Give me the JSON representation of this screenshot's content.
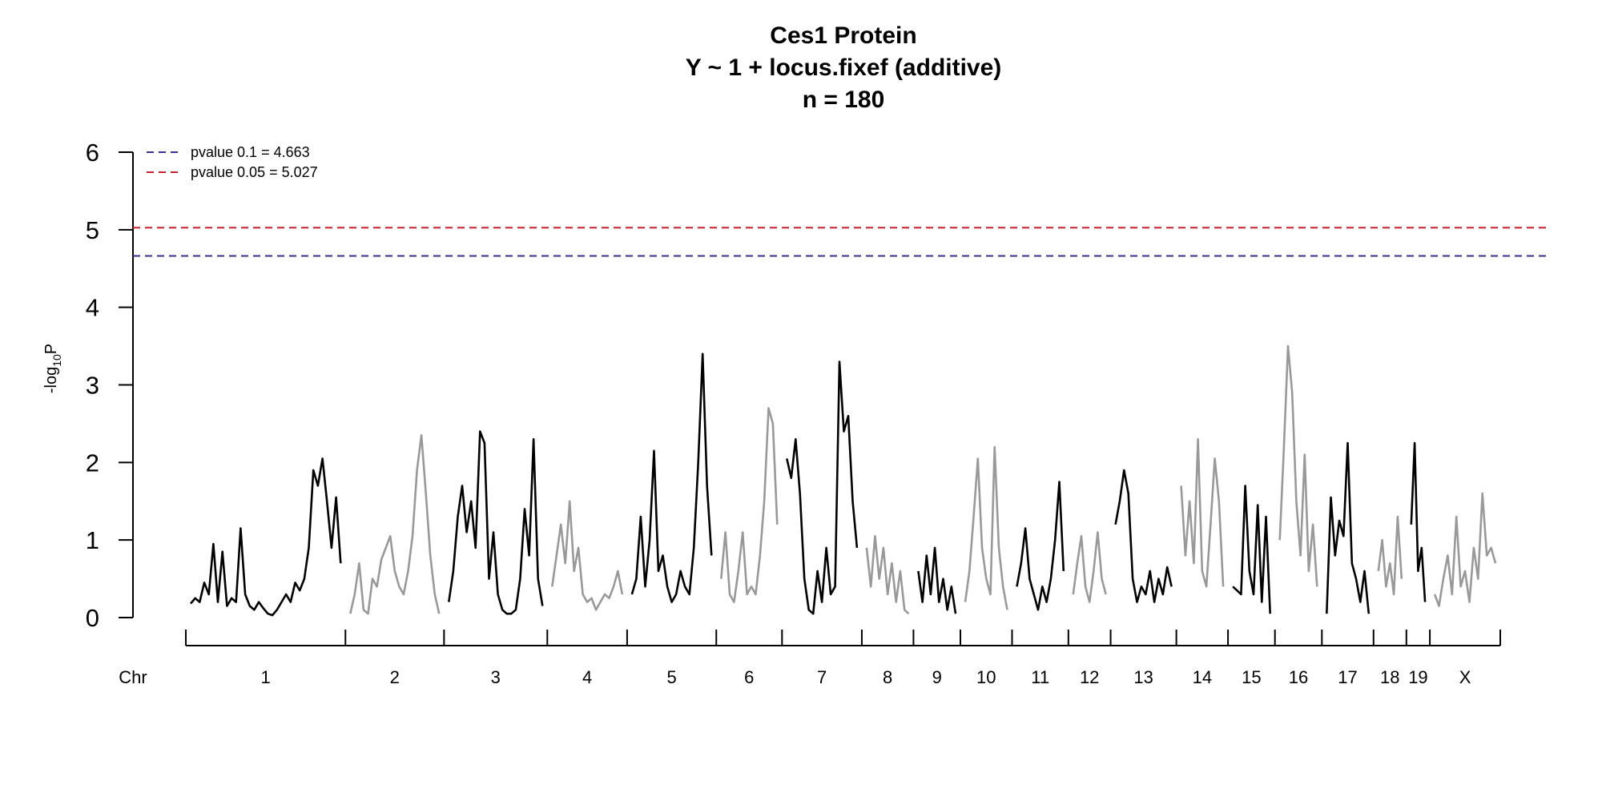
{
  "chart_data": {
    "type": "line",
    "title": [
      "Ces1 Protein",
      "Y ~ 1 + locus.fixef (additive)",
      "n = 180"
    ],
    "ylabel": "-log10P",
    "ylabel_parts": {
      "main": "-log",
      "sub": "10",
      "tail": "P"
    },
    "ylim": [
      0,
      6
    ],
    "yticks": [
      0,
      1,
      2,
      3,
      4,
      5,
      6
    ],
    "xaxis_label": "Chr",
    "grid": false,
    "legend_position": "top-left",
    "thresholds": [
      {
        "label": "pvalue 0.1 = 4.663",
        "value": 4.663,
        "color": "#3b2f8f"
      },
      {
        "label": "pvalue 0.05 = 5.027",
        "value": 5.027,
        "color": "#cc1f2f"
      }
    ],
    "series_colors": {
      "odd": "#000000",
      "even": "#999999"
    },
    "chromosomes": [
      {
        "label": "1",
        "values": [
          0.18,
          0.25,
          0.2,
          0.45,
          0.3,
          0.95,
          0.2,
          0.85,
          0.15,
          0.25,
          0.2,
          1.15,
          0.3,
          0.15,
          0.1,
          0.2,
          0.12,
          0.05,
          0.03,
          0.1,
          0.2,
          0.3,
          0.2,
          0.45,
          0.35,
          0.5,
          0.9,
          1.9,
          1.7,
          2.05,
          1.5,
          0.9,
          1.55,
          0.7
        ]
      },
      {
        "label": "2",
        "values": [
          0.05,
          0.3,
          0.7,
          0.1,
          0.05,
          0.5,
          0.4,
          0.75,
          0.9,
          1.05,
          0.6,
          0.4,
          0.3,
          0.6,
          1.05,
          1.9,
          2.35,
          1.6,
          0.8,
          0.3,
          0.05
        ]
      },
      {
        "label": "3",
        "values": [
          0.2,
          0.6,
          1.3,
          1.7,
          1.1,
          1.5,
          0.9,
          2.4,
          2.25,
          0.5,
          1.1,
          0.3,
          0.1,
          0.05,
          0.05,
          0.1,
          0.5,
          1.4,
          0.8,
          2.3,
          0.5,
          0.15
        ]
      },
      {
        "label": "4",
        "values": [
          0.4,
          0.8,
          1.2,
          0.7,
          1.5,
          0.6,
          0.9,
          0.3,
          0.2,
          0.25,
          0.1,
          0.2,
          0.3,
          0.25,
          0.4,
          0.6,
          0.3
        ]
      },
      {
        "label": "5",
        "values": [
          0.3,
          0.5,
          1.3,
          0.4,
          1.0,
          2.15,
          0.6,
          0.8,
          0.4,
          0.2,
          0.3,
          0.6,
          0.4,
          0.3,
          0.9,
          2.0,
          3.4,
          1.7,
          0.8
        ]
      },
      {
        "label": "6",
        "values": [
          0.5,
          1.1,
          0.3,
          0.2,
          0.6,
          1.1,
          0.3,
          0.4,
          0.3,
          0.8,
          1.5,
          2.7,
          2.5,
          1.2
        ]
      },
      {
        "label": "7",
        "values": [
          2.05,
          1.8,
          2.3,
          1.6,
          0.5,
          0.1,
          0.05,
          0.6,
          0.2,
          0.9,
          0.3,
          0.4,
          3.3,
          2.4,
          2.6,
          1.5,
          0.9
        ]
      },
      {
        "label": "8",
        "values": [
          0.9,
          0.4,
          1.05,
          0.5,
          0.9,
          0.3,
          0.7,
          0.2,
          0.6,
          0.1,
          0.05
        ]
      },
      {
        "label": "9",
        "values": [
          0.6,
          0.2,
          0.8,
          0.3,
          0.9,
          0.2,
          0.5,
          0.1,
          0.4,
          0.05
        ]
      },
      {
        "label": "10",
        "values": [
          0.2,
          0.6,
          1.3,
          2.05,
          0.9,
          0.5,
          0.3,
          2.2,
          0.9,
          0.4,
          0.1
        ]
      },
      {
        "label": "11",
        "values": [
          0.4,
          0.7,
          1.15,
          0.5,
          0.3,
          0.1,
          0.4,
          0.2,
          0.5,
          1.0,
          1.75,
          0.6
        ]
      },
      {
        "label": "12",
        "values": [
          0.3,
          0.7,
          1.05,
          0.4,
          0.2,
          0.6,
          1.1,
          0.5,
          0.3
        ]
      },
      {
        "label": "13",
        "values": [
          1.2,
          1.5,
          1.9,
          1.6,
          0.5,
          0.2,
          0.4,
          0.3,
          0.6,
          0.2,
          0.5,
          0.3,
          0.65,
          0.4
        ]
      },
      {
        "label": "14",
        "values": [
          1.7,
          0.8,
          1.5,
          0.7,
          2.3,
          0.6,
          0.4,
          1.2,
          2.05,
          1.5,
          0.4
        ]
      },
      {
        "label": "15",
        "values": [
          0.4,
          0.35,
          0.3,
          1.7,
          0.6,
          0.3,
          1.45,
          0.2,
          1.3,
          0.05
        ]
      },
      {
        "label": "16",
        "values": [
          1.0,
          2.2,
          3.5,
          2.9,
          1.5,
          0.8,
          2.1,
          0.6,
          1.2,
          0.4
        ]
      },
      {
        "label": "17",
        "values": [
          0.05,
          1.55,
          0.8,
          1.25,
          1.05,
          2.25,
          0.7,
          0.5,
          0.2,
          0.6,
          0.05
        ]
      },
      {
        "label": "18",
        "values": [
          0.6,
          1.0,
          0.4,
          0.7,
          0.3,
          1.3,
          0.5
        ]
      },
      {
        "label": "19",
        "values": [
          1.2,
          2.25,
          0.6,
          0.9,
          0.2
        ]
      },
      {
        "label": "X",
        "values": [
          0.3,
          0.15,
          0.5,
          0.8,
          0.3,
          1.3,
          0.4,
          0.6,
          0.2,
          0.9,
          0.5,
          1.6,
          0.8,
          0.9,
          0.7
        ]
      }
    ]
  }
}
